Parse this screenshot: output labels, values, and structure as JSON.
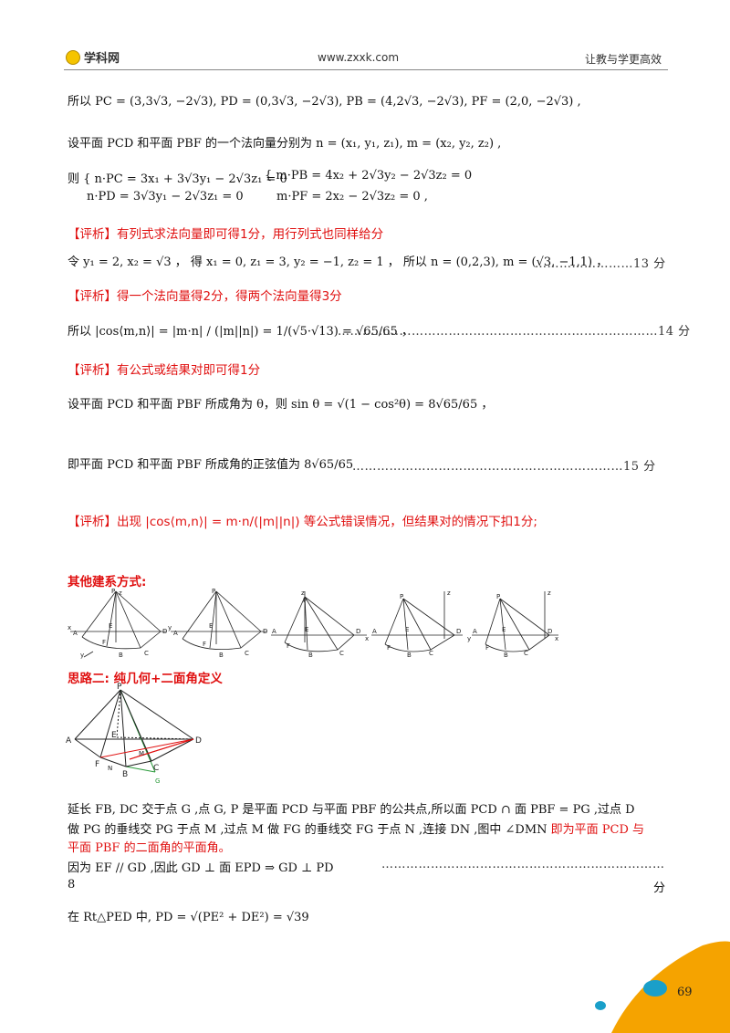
{
  "header": {
    "logo_text": "学科网",
    "site": "www.zxxk.com",
    "slogan": "让教与学更高效"
  },
  "lines": {
    "l1": "所以 PC = (3,3√3, −2√3), PD = (0,3√3, −2√3), PB = (4,2√3, −2√3), PF = (2,0, −2√3) ,",
    "l2": "设平面 PCD 和平面 PBF 的一个法向量分别为 n = (x₁, y₁, z₁), m = (x₂, y₂, z₂) ,",
    "l3a": "则 { n·PC = 3x₁ + 3√3y₁ − 2√3z₁ = 0",
    "l3b": "n·PD = 3√3y₁ − 2√3z₁ = 0",
    "l3c": "{ m·PB = 4x₂ + 2√3y₂ − 2√3z₂ = 0",
    "l3d": "m·PF = 2x₂ − 2√3z₂ = 0   ,",
    "c1": "【评析】有列式求法向量即可得1分，用行列式也同样给分",
    "l4": "令 y₁ = 2, x₂ = √3 ， 得 x₁ = 0, z₁ = 3, y₂ = −1, z₂ = 1 ， 所以 n = (0,2,3), m = (√3, −1,1) ，",
    "l4_pts": "……………………13 分",
    "c2": "【评析】得一个法向量得2分，得两个法向量得3分",
    "l5": "所以 |cos⟨m,n⟩| = |m·n| / (|m||n|) = 1/(√5·√13) = √65/65 ，",
    "l5_pts": "……………………………………………………………………14 分",
    "c3": "【评析】有公式或结果对即可得1分",
    "l6": "设平面 PCD 和平面 PBF 所成角为 θ，则 sin θ = √(1 − cos²θ) = 8√65/65 ，",
    "l7": "即平面 PCD 和平面 PBF 所成角的正弦值为 8√65/65",
    "l7_pts": "…………………………………………………………15 分",
    "c4": "【评析】出现 |cos⟨m,n⟩| = m·n/(|m||n|) 等公式错误情况，但结果对的情况下扣1分;",
    "other_title": "其他建系方式:",
    "idea2_title": "思路二: 纯几何+二面角定义",
    "p1": "延长 FB, DC 交于点 G ,点 G, P 是平面 PCD 与平面 PBF 的公共点,所以面 PCD ∩ 面 PBF = PG ,过点 D",
    "p2a": "做 PG 的垂线交 PG 于点 M ,过点 M 做 FG 的垂线交 FG 于点 N ,连接 DN ,图中 ∠DMN ",
    "p2b": "即为平面 PCD 与",
    "p3": "平面 PBF 的二面角的平面角。",
    "p4": "因为 EF // GD ,因此 GD ⊥ 面 EPD ⇒ GD ⊥ PD",
    "p4_dots": "……………………………………………………………",
    "p5_left": "8",
    "p5_right": "分",
    "p6": "在 Rt△PED 中, PD = √(PE² + DE²) = √39"
  },
  "page_number": "69",
  "colors": {
    "comment_red": "#e01010",
    "corner_orange": "#f5a300",
    "dot_blue": "#1a9fc9"
  },
  "figures": {
    "labels": [
      "P",
      "z",
      "x",
      "y",
      "A",
      "E",
      "F",
      "B",
      "C",
      "D",
      "N",
      "G",
      "M"
    ]
  }
}
